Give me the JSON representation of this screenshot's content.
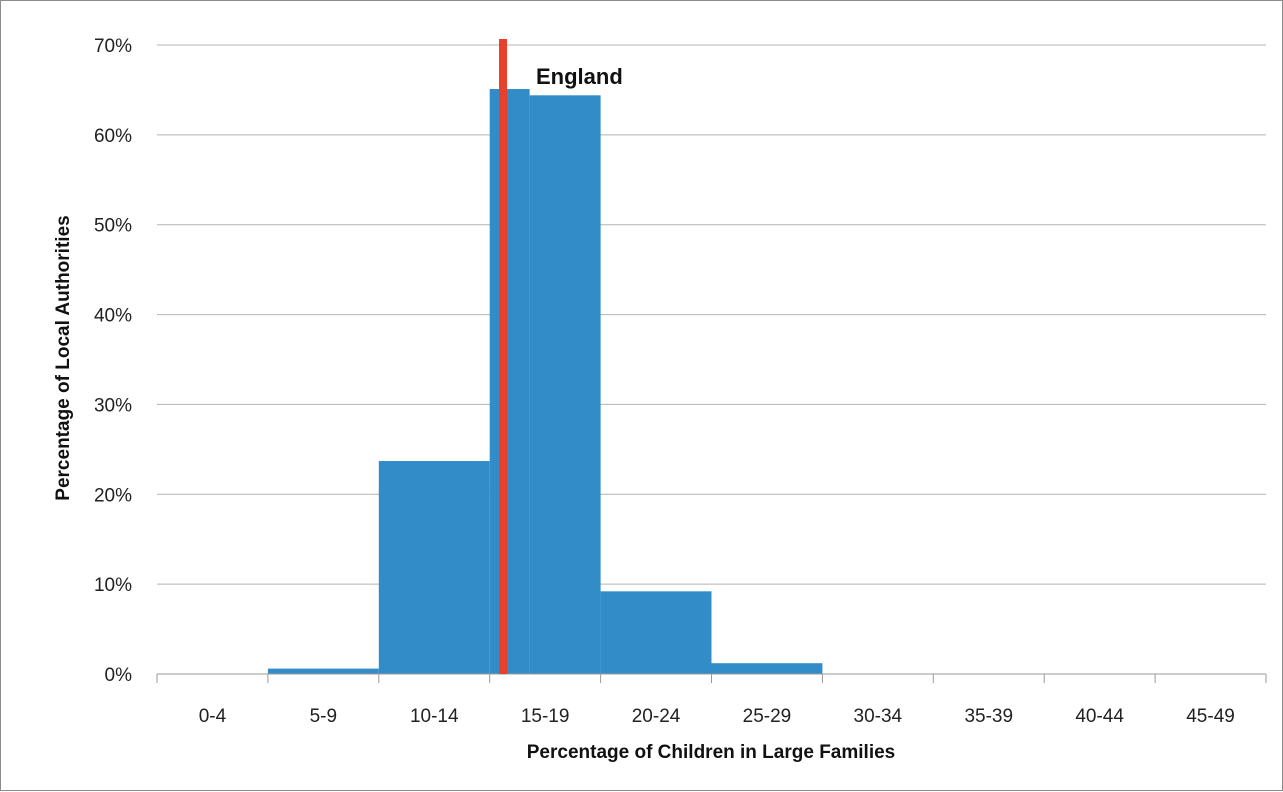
{
  "chart_data": {
    "type": "bar",
    "categories": [
      "0-4",
      "5-9",
      "10-14",
      "15-19",
      "20-24",
      "25-29",
      "30-34",
      "35-39",
      "40-44",
      "45-49"
    ],
    "values": [
      0,
      0.6,
      23.7,
      65.1,
      9.2,
      1.2,
      0,
      0,
      0,
      0
    ],
    "split_bar": {
      "category": "15-19",
      "left_value": 65.1,
      "right_value": 64.4
    },
    "xlabel": "Percentage of Children in Large Families",
    "ylabel": "Percentage of Local Authorities",
    "ylim": [
      0,
      70
    ],
    "yticks": [
      0,
      10,
      20,
      30,
      40,
      50,
      60,
      70
    ],
    "ytick_labels": [
      "0%",
      "10%",
      "20%",
      "30%",
      "40%",
      "50%",
      "60%",
      "70%"
    ],
    "grid": true,
    "legend": "none",
    "reference_line": {
      "label": "England",
      "x_value": 15.6,
      "color": "#e8412b"
    },
    "bar_color": "#318cc7",
    "gridline_color": "#b3b3b3"
  }
}
